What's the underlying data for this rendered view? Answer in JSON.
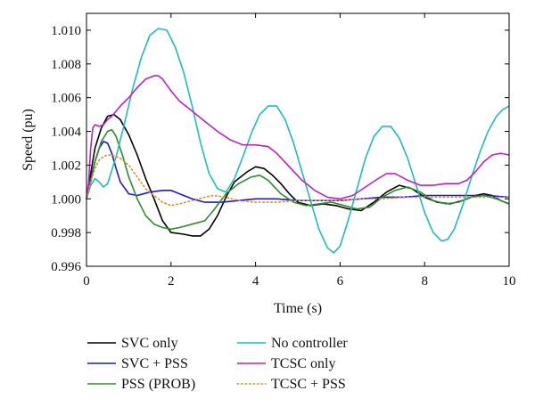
{
  "chart_data": {
    "type": "line",
    "title": "",
    "xlabel": "Time (s)",
    "ylabel": "Speed (pu)",
    "xlim": [
      0,
      10
    ],
    "ylim": [
      0.996,
      1.011
    ],
    "x_ticks": [
      0,
      2,
      4,
      6,
      8,
      10
    ],
    "x_tick_labels": [
      "0",
      "2",
      "4",
      "6",
      "8",
      "10"
    ],
    "y_ticks": [
      0.996,
      0.998,
      1.0,
      1.002,
      1.004,
      1.006,
      1.008,
      1.01
    ],
    "y_tick_labels": [
      "0.996",
      "0.998",
      "1.000",
      "1.002",
      "1.004",
      "1.006",
      "1.008",
      "1.010"
    ],
    "grid": false,
    "legend_placement": "bottom",
    "series": [
      {
        "name": "SVC only",
        "color": "#000000",
        "dash": "solid",
        "x": [
          0,
          0.1,
          0.2,
          0.35,
          0.5,
          0.65,
          0.8,
          1.0,
          1.2,
          1.4,
          1.6,
          1.8,
          2.0,
          2.3,
          2.5,
          2.7,
          2.9,
          3.1,
          3.3,
          3.5,
          3.8,
          4.0,
          4.2,
          4.4,
          4.6,
          4.8,
          5.0,
          5.3,
          5.6,
          5.9,
          6.2,
          6.5,
          6.8,
          7.1,
          7.4,
          7.7,
          8.0,
          8.3,
          8.6,
          8.9,
          9.2,
          9.4,
          9.6,
          9.8,
          10.0
        ],
        "y": [
          1.0,
          1.0015,
          1.003,
          1.0042,
          1.0049,
          1.005,
          1.0047,
          1.0038,
          1.0026,
          1.0012,
          1.0,
          0.9987,
          0.998,
          0.9979,
          0.9978,
          0.9978,
          0.9982,
          0.999,
          1.0001,
          1.001,
          1.0016,
          1.0019,
          1.0018,
          1.0014,
          1.0009,
          1.0003,
          0.9998,
          0.9996,
          0.9997,
          0.9996,
          0.9994,
          0.9993,
          0.9998,
          1.0004,
          1.0008,
          1.0006,
          1.0001,
          0.9998,
          0.9997,
          0.9999,
          1.0002,
          1.0003,
          1.0002,
          0.9999,
          0.9997
        ]
      },
      {
        "name": "SVC + PSS",
        "color": "#1a1acc",
        "dash": "solid",
        "x": [
          0,
          0.1,
          0.2,
          0.3,
          0.4,
          0.5,
          0.6,
          0.7,
          0.8,
          1.0,
          1.2,
          1.5,
          1.8,
          2.0,
          2.2,
          2.5,
          2.8,
          3.2,
          3.6,
          4.0,
          4.5,
          5.0,
          5.5,
          6.0,
          6.5,
          7.0,
          7.5,
          8.0,
          8.5,
          9.0,
          9.5,
          10.0
        ],
        "y": [
          1.0,
          1.0012,
          1.0022,
          1.003,
          1.0034,
          1.0033,
          1.0027,
          1.0018,
          1.001,
          1.0003,
          1.0002,
          1.0004,
          1.0005,
          1.0005,
          1.0003,
          1.0,
          0.9998,
          0.9998,
          0.9999,
          1.0,
          1.0,
          0.9999,
          0.9999,
          0.9999,
          1.0,
          1.0001,
          1.0001,
          1.0002,
          1.0002,
          1.0002,
          1.0002,
          1.0001
        ]
      },
      {
        "name": "PSS (PROB)",
        "color": "#2e8b2e",
        "dash": "solid",
        "x": [
          0,
          0.1,
          0.2,
          0.35,
          0.5,
          0.6,
          0.7,
          0.85,
          1.0,
          1.2,
          1.4,
          1.6,
          1.8,
          2.0,
          2.2,
          2.5,
          2.8,
          3.0,
          3.3,
          3.6,
          3.9,
          4.1,
          4.3,
          4.6,
          4.9,
          5.2,
          5.5,
          5.8,
          6.1,
          6.4,
          6.7,
          7.0,
          7.3,
          7.6,
          7.9,
          8.2,
          8.5,
          8.8,
          9.1,
          9.4,
          9.7,
          10.0
        ],
        "y": [
          1.0,
          1.001,
          1.0022,
          1.0034,
          1.004,
          1.0041,
          1.0037,
          1.0026,
          1.0013,
          1.0,
          0.999,
          0.9985,
          0.9983,
          0.9982,
          0.9983,
          0.9985,
          0.9987,
          0.9993,
          1.0003,
          1.0009,
          1.0013,
          1.0014,
          1.0011,
          1.0003,
          0.9998,
          0.9996,
          0.9997,
          0.9998,
          0.9996,
          0.9994,
          0.9995,
          1.0001,
          1.0005,
          1.0007,
          1.0004,
          0.9999,
          0.9997,
          0.9998,
          1.0001,
          1.0002,
          1.0,
          0.9997
        ]
      },
      {
        "name": "No controller",
        "color": "#1fbcbc",
        "dash": "solid",
        "x": [
          0,
          0.1,
          0.2,
          0.3,
          0.4,
          0.5,
          0.7,
          0.9,
          1.1,
          1.3,
          1.5,
          1.7,
          1.9,
          2.1,
          2.3,
          2.5,
          2.7,
          2.9,
          3.1,
          3.3,
          3.5,
          3.7,
          3.9,
          4.1,
          4.3,
          4.5,
          4.7,
          4.9,
          5.1,
          5.3,
          5.5,
          5.7,
          5.85,
          6.0,
          6.2,
          6.4,
          6.6,
          6.8,
          7.0,
          7.2,
          7.4,
          7.6,
          7.8,
          8.0,
          8.2,
          8.4,
          8.55,
          8.7,
          8.9,
          9.1,
          9.3,
          9.5,
          9.7,
          9.85,
          10.0
        ],
        "y": [
          1.0,
          1.0008,
          1.0012,
          1.001,
          1.0007,
          1.0009,
          1.0025,
          1.0045,
          1.0066,
          1.0084,
          1.0097,
          1.0101,
          1.01,
          1.009,
          1.0075,
          1.0055,
          1.0033,
          1.0015,
          1.0006,
          1.0004,
          1.0012,
          1.0025,
          1.0039,
          1.005,
          1.0055,
          1.0055,
          1.0047,
          1.0033,
          1.0016,
          0.9999,
          0.9982,
          0.9971,
          0.9968,
          0.9972,
          0.9988,
          1.0006,
          1.0024,
          1.0037,
          1.0043,
          1.0043,
          1.0036,
          1.0024,
          1.0008,
          0.9992,
          0.998,
          0.9975,
          0.9976,
          0.9982,
          0.9996,
          1.0012,
          1.0027,
          1.004,
          1.0049,
          1.0053,
          1.0055
        ]
      },
      {
        "name": "TCSC only",
        "color": "#c21fc2",
        "dash": "solid",
        "x": [
          0,
          0.05,
          0.1,
          0.15,
          0.2,
          0.3,
          0.4,
          0.5,
          0.6,
          0.8,
          1.0,
          1.2,
          1.4,
          1.6,
          1.7,
          1.8,
          2.0,
          2.2,
          2.5,
          2.8,
          3.1,
          3.4,
          3.7,
          4.0,
          4.3,
          4.5,
          4.8,
          5.1,
          5.4,
          5.7,
          6.0,
          6.3,
          6.6,
          6.9,
          7.1,
          7.3,
          7.6,
          7.9,
          8.2,
          8.5,
          8.8,
          9.0,
          9.2,
          9.4,
          9.6,
          9.8,
          10.0
        ],
        "y": [
          1.0,
          1.001,
          1.003,
          1.0042,
          1.0044,
          1.0043,
          1.0044,
          1.0047,
          1.0049,
          1.0055,
          1.006,
          1.0066,
          1.0071,
          1.0073,
          1.0073,
          1.0071,
          1.0064,
          1.0058,
          1.0052,
          1.0046,
          1.004,
          1.0035,
          1.0032,
          1.0032,
          1.0031,
          1.0027,
          1.0019,
          1.0011,
          1.0005,
          1.0001,
          1.0,
          1.0002,
          1.0007,
          1.0012,
          1.0015,
          1.0015,
          1.0011,
          1.0008,
          1.0008,
          1.0009,
          1.0009,
          1.0011,
          1.0016,
          1.0022,
          1.0026,
          1.0027,
          1.0026
        ]
      },
      {
        "name": "TCSC + PSS",
        "color": "#e58b2a",
        "dash": "dotted",
        "x": [
          0,
          0.1,
          0.2,
          0.3,
          0.4,
          0.5,
          0.6,
          0.7,
          0.8,
          1.0,
          1.2,
          1.4,
          1.6,
          1.8,
          2.0,
          2.2,
          2.5,
          2.8,
          3.0,
          3.3,
          3.6,
          4.0,
          4.5,
          5.0,
          5.5,
          6.0,
          6.5,
          7.0,
          7.5,
          8.0,
          8.5,
          9.0,
          9.5,
          10.0
        ],
        "y": [
          1.0,
          1.001,
          1.0018,
          1.0023,
          1.0025,
          1.0026,
          1.0026,
          1.0025,
          1.0024,
          1.002,
          1.0013,
          1.0006,
          1.0002,
          0.9998,
          0.9996,
          0.9997,
          0.9999,
          1.0001,
          1.0002,
          1.0001,
          0.9999,
          0.9998,
          0.9998,
          0.9999,
          0.9999,
          0.9999,
          1.0,
          1.0,
          1.0001,
          1.0001,
          1.0001,
          1.0001,
          1.0001,
          1.0001
        ]
      }
    ]
  }
}
